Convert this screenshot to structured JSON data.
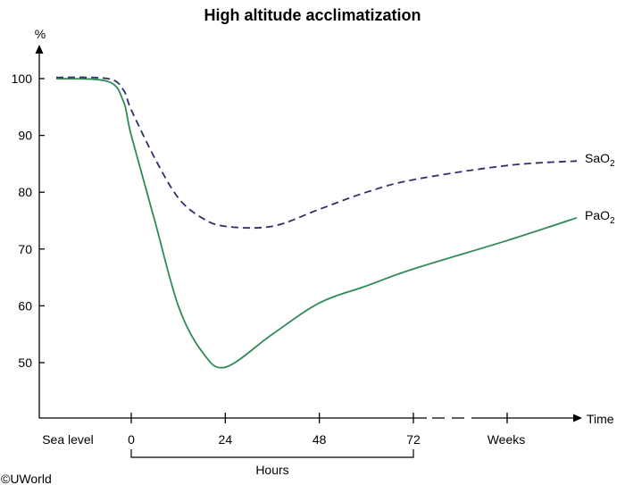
{
  "chart_data": {
    "type": "line",
    "title": "High altitude acclimatization",
    "ylabel": "%",
    "xlabel": "Time",
    "ylim": [
      40,
      100
    ],
    "y_ticks": [
      "100",
      "90",
      "80",
      "70",
      "60",
      "50"
    ],
    "x_ticks": [
      "Sea level",
      "0",
      "24",
      "48",
      "72",
      "Weeks"
    ],
    "x_group_label": "Hours",
    "series": [
      {
        "name": "SaO",
        "name_sub": "2",
        "style": "dashed",
        "color": "#2e2e6e",
        "points": [
          [
            "Sea level",
            100.2
          ],
          [
            "-6",
            100.0
          ],
          [
            "-2",
            98.0
          ],
          [
            "0",
            94.5
          ],
          [
            "6",
            86.0
          ],
          [
            "12",
            79.0
          ],
          [
            "18",
            75.5
          ],
          [
            "24",
            74.0
          ],
          [
            "36",
            74.0
          ],
          [
            "48",
            77.0
          ],
          [
            "60",
            80.0
          ],
          [
            "72",
            82.2
          ],
          [
            "Weeks",
            84.7
          ],
          [
            "late",
            85.5
          ]
        ]
      },
      {
        "name": "PaO",
        "name_sub": "2",
        "style": "solid",
        "color": "#2e8b57",
        "points": [
          [
            "Sea level",
            100.0
          ],
          [
            "-6",
            99.5
          ],
          [
            "-2",
            96.0
          ],
          [
            "0",
            90.0
          ],
          [
            "6",
            75.0
          ],
          [
            "12",
            60.0
          ],
          [
            "18",
            52.0
          ],
          [
            "24",
            49.2
          ],
          [
            "36",
            55.0
          ],
          [
            "48",
            60.5
          ],
          [
            "60",
            63.5
          ],
          [
            "72",
            66.5
          ],
          [
            "Weeks",
            71.5
          ],
          [
            "late",
            75.5
          ]
        ]
      }
    ]
  },
  "credit": "©UWorld"
}
